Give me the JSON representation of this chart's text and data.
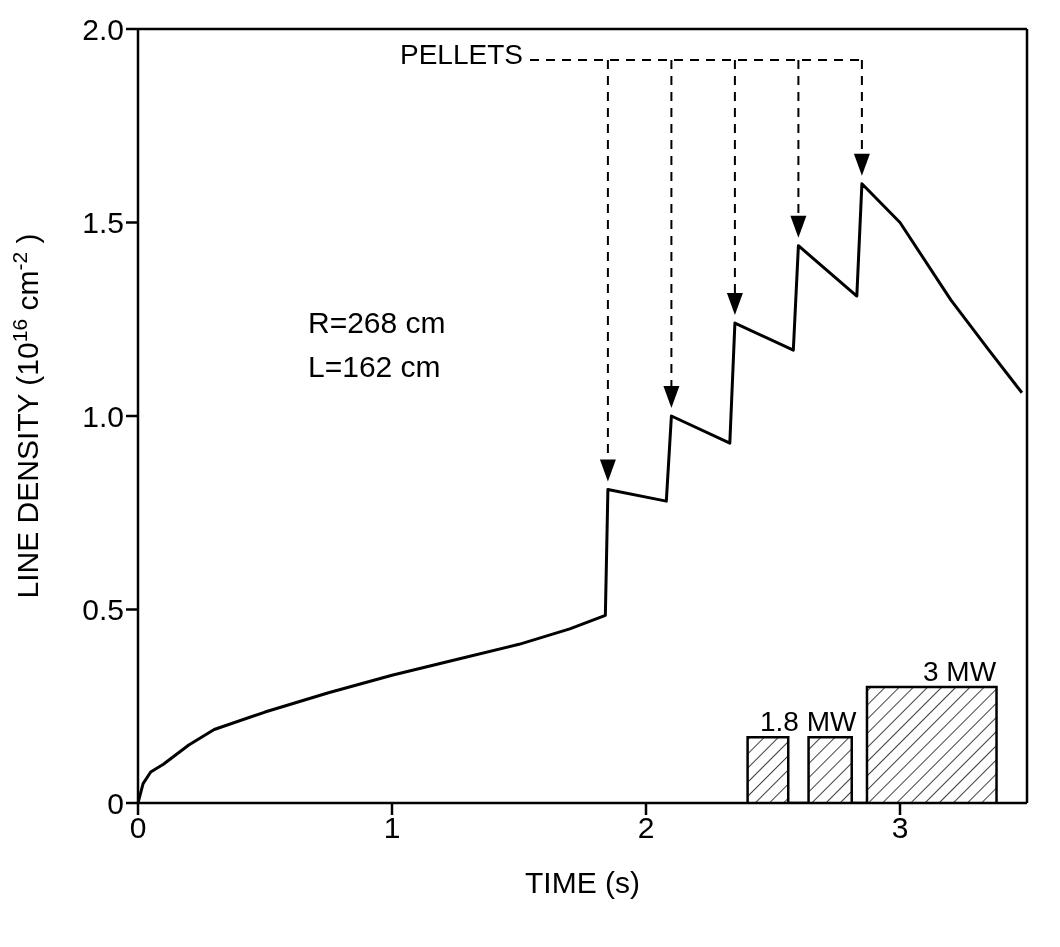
{
  "chart_data": {
    "type": "line",
    "xlabel": "TIME (s)",
    "ylabel": "LINE DENSITY (10$^{16}$ cm$^{-2}$)",
    "xlim": [
      0,
      3.5
    ],
    "ylim": [
      0,
      2
    ],
    "xticks": [
      0,
      1,
      2,
      3
    ],
    "yticks": [
      0,
      0.5,
      {
        "value": 1,
        "label": "1.0"
      },
      1.5,
      {
        "value": 2,
        "label": "2.0"
      }
    ],
    "grid": false,
    "legend": false,
    "marker": "none",
    "line_style": "solid",
    "series": [
      {
        "color": "#000000",
        "x": [
          0,
          0.02,
          0.05,
          0.1,
          0.2,
          0.3,
          0.5,
          0.75,
          1.0,
          1.25,
          1.5,
          1.7,
          1.84,
          1.85,
          2.08,
          2.1,
          2.33,
          2.35,
          2.58,
          2.6,
          2.83,
          2.85,
          3.0,
          3.2,
          3.35,
          3.48
        ],
        "values": [
          0,
          0.05,
          0.08,
          0.1,
          0.15,
          0.19,
          0.235,
          0.285,
          0.33,
          0.37,
          0.41,
          0.45,
          0.485,
          0.81,
          0.78,
          1.0,
          0.93,
          1.24,
          1.17,
          1.44,
          1.31,
          1.6,
          1.5,
          1.3,
          1.17,
          1.06
        ]
      },
      {
        "type": "area",
        "color": "#000000",
        "x": [
          2.4,
          2.4,
          2.56,
          2.56,
          2.64,
          2.64,
          2.81,
          2.81,
          2.87,
          2.87,
          3.38,
          3.38
        ],
        "values": [
          0,
          0.17,
          0.17,
          0,
          0,
          0.17,
          0.17,
          0,
          0,
          0.3,
          0.3,
          0
        ]
      }
    ],
    "annotations": [
      "PELLETS",
      "R=268 cm",
      "L=162 cm",
      "1.8 MW",
      "3 MW"
    ]
  }
}
